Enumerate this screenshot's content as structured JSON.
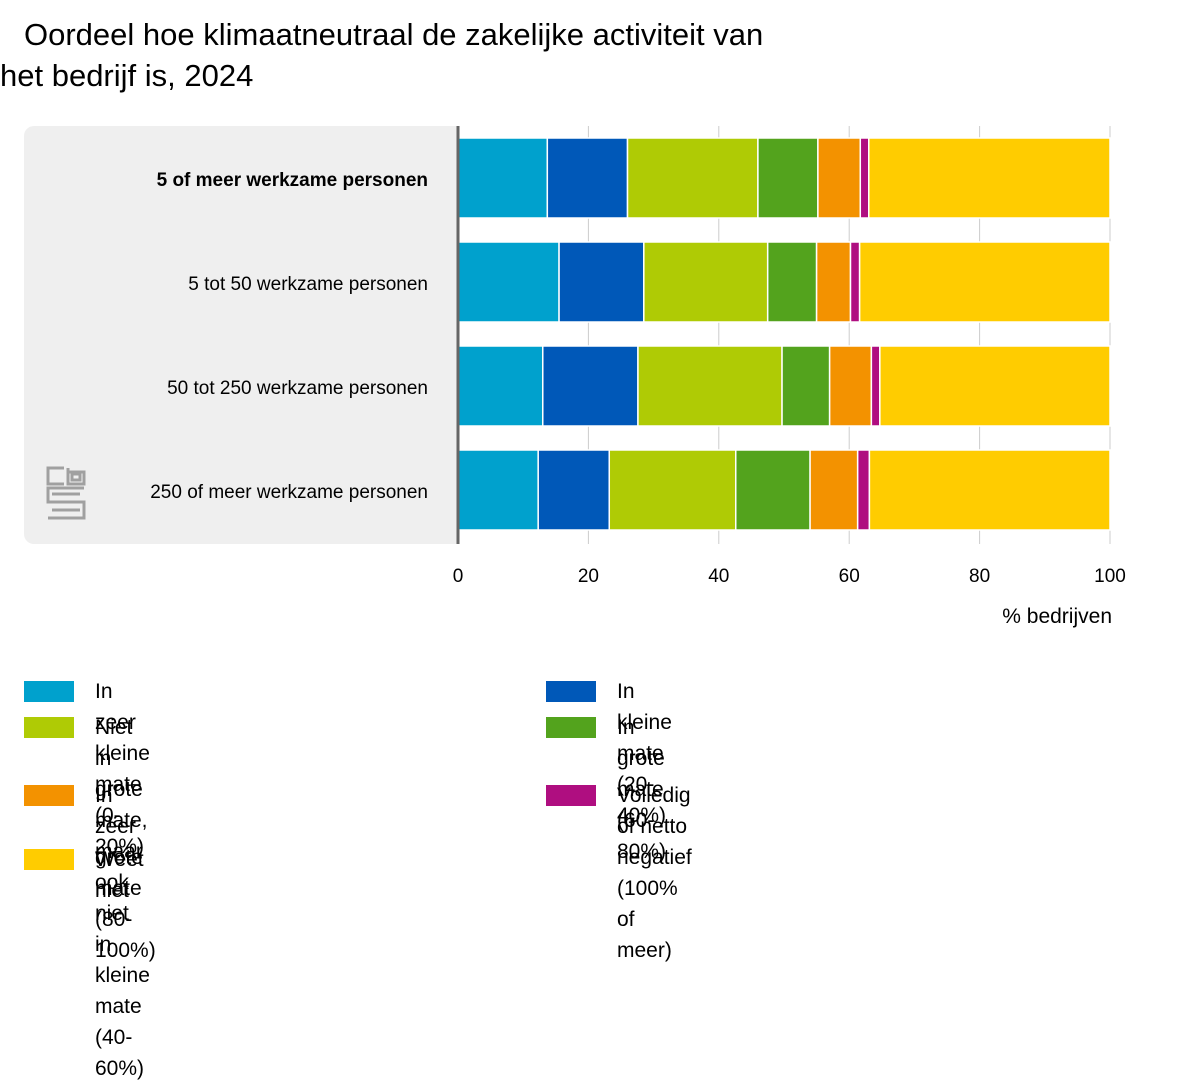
{
  "chart_data": {
    "type": "bar",
    "orientation": "horizontal",
    "stacked": true,
    "title": "Oordeel hoe klimaatneutraal de zakelijke activiteit van het bedrijf is, 2024",
    "title_lines": [
      "Oordeel hoe klimaatneutraal de zakelijke activiteit van",
      "het bedrijf is, 2024"
    ],
    "xlabel": "% bedrijven",
    "ylabel": "",
    "xlim": [
      0,
      100
    ],
    "xticks": [
      0,
      20,
      40,
      60,
      80,
      100
    ],
    "grid": true,
    "legend_position": "bottom",
    "categories": [
      "5 of meer werkzame personen",
      "5 tot 50 werkzame personen",
      "50 tot 250 werkzame personen",
      "250 of meer werkzame personen"
    ],
    "category_bold": [
      true,
      false,
      false,
      false
    ],
    "series": [
      {
        "name": "In zeer kleine mate (0-20%)",
        "color": "#00a1cd",
        "values": [
          13.7,
          15.5,
          13.0,
          12.3
        ]
      },
      {
        "name": "In kleine mate (20-40%)",
        "color": "#0058b8",
        "values": [
          12.3,
          13.0,
          14.6,
          10.9
        ]
      },
      {
        "name": "Niet in grote mate,\nmaar ook niet in kleine mate (40-60%)",
        "color": "#afcb05",
        "values": [
          20.0,
          19.0,
          22.1,
          19.4
        ]
      },
      {
        "name": "In grote mate (60-80%)",
        "color": "#53a31d",
        "values": [
          9.2,
          7.5,
          7.3,
          11.4
        ]
      },
      {
        "name": "In zeer grote mate (80-100%)",
        "color": "#f39200",
        "values": [
          6.5,
          5.2,
          6.4,
          7.3
        ]
      },
      {
        "name": "Volledig of netto negatief\n(100% of meer)",
        "color": "#af0e80",
        "values": [
          1.3,
          1.4,
          1.3,
          1.8
        ]
      },
      {
        "name": "Weet niet",
        "color": "#ffcc00",
        "values": [
          37.0,
          38.4,
          35.3,
          36.9
        ]
      }
    ]
  },
  "logo": {
    "text": "cbs",
    "icon": "cbs-logo-icon",
    "color": "#a0a0a0"
  },
  "colors": {
    "panel": "#efefef",
    "axis": "#666666",
    "grid": "#cccccc"
  }
}
